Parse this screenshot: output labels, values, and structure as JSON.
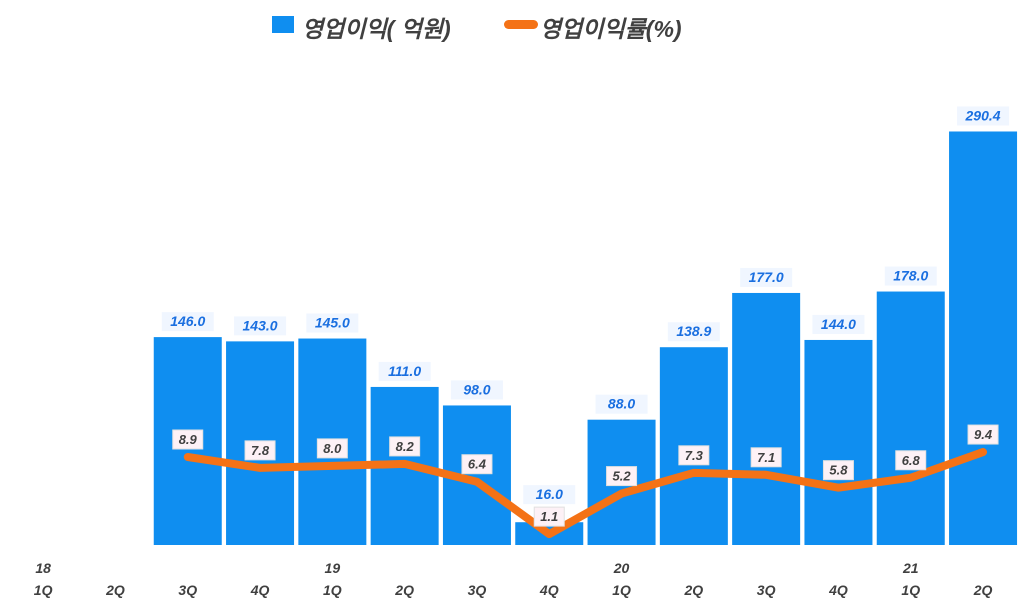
{
  "chart_data": {
    "type": "bar+line",
    "categories": [
      "1Q",
      "2Q",
      "3Q",
      "4Q",
      "1Q",
      "2Q",
      "3Q",
      "4Q",
      "1Q",
      "2Q",
      "3Q",
      "4Q",
      "1Q",
      "2Q"
    ],
    "year_labels": [
      "18",
      "",
      "",
      "",
      "19",
      "",
      "",
      "",
      "20",
      "",
      "",
      "",
      "21",
      ""
    ],
    "series": [
      {
        "name": "영업이익( 억원)",
        "type": "bar",
        "color": "#0f8ef0",
        "values": [
          null,
          null,
          146.0,
          143.0,
          145.0,
          111.0,
          98.0,
          16.0,
          88.0,
          138.9,
          177.0,
          144.0,
          178.0,
          290.4
        ],
        "labels": [
          "",
          "",
          "146.0",
          "143.0",
          "145.0",
          "111.0",
          "98.0",
          "16.0",
          "88.0",
          "138.9",
          "177.0",
          "144.0",
          "178.0",
          "290.4"
        ]
      },
      {
        "name": "영업이익률(%)",
        "type": "line",
        "color": "#f47216",
        "axis": "secondary",
        "values": [
          null,
          null,
          8.9,
          7.8,
          8.0,
          8.2,
          6.4,
          1.1,
          5.2,
          7.3,
          7.1,
          5.8,
          6.8,
          9.4
        ],
        "labels": [
          "",
          "",
          "8.9",
          "7.8",
          "8.0",
          "8.2",
          "6.4",
          "1.1",
          "5.2",
          "7.3",
          "7.1",
          "5.8",
          "6.8",
          "9.4"
        ]
      }
    ],
    "ylim": [
      0,
      309
    ],
    "y2lim": [
      0,
      44.5
    ],
    "grid": false,
    "legend": "top"
  }
}
